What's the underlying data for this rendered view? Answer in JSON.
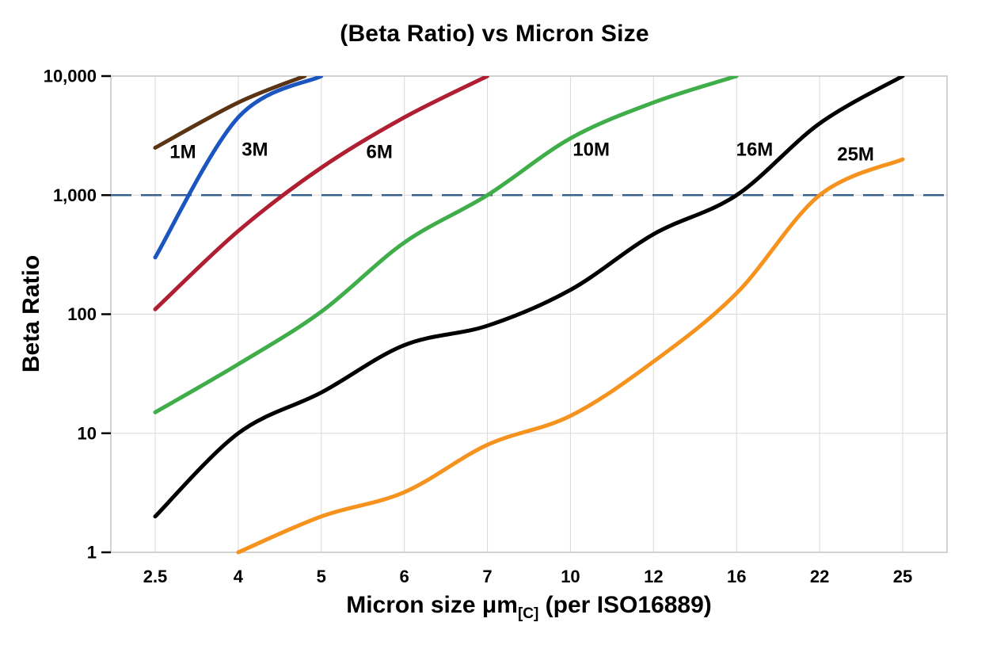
{
  "chart_data": {
    "type": "line",
    "title": "(Beta Ratio) vs Micron Size",
    "ylabel": "Beta Ratio",
    "xlabel": "Micron size μm[C] (per ISO16889)",
    "xlabel_parts": {
      "main": "Micron size μm",
      "subscript": "[C]",
      "suffix": " (per ISO16889)"
    },
    "x_ticks": [
      2.5,
      4,
      5,
      6,
      7,
      10,
      12,
      16,
      22,
      25
    ],
    "x_tick_labels": [
      "2.5",
      "4",
      "5",
      "6",
      "7",
      "10",
      "12",
      "16",
      "22",
      "25"
    ],
    "y_scale": "log",
    "ylim": [
      1,
      10000
    ],
    "y_ticks": [
      1,
      10,
      100,
      1000,
      10000
    ],
    "y_tick_labels": [
      "1",
      "10",
      "100",
      "1,000",
      "10,000"
    ],
    "grid": true,
    "legend": "inline-labels",
    "grid_color": "#d9d9d9",
    "border_color": "#c4c4c4",
    "reference_line": {
      "value": 1000,
      "style": "dashed",
      "color": "#38618c"
    },
    "series": [
      {
        "name": "1M",
        "color": "#5a3413",
        "points": [
          [
            2.5,
            2500
          ],
          [
            4,
            6000
          ],
          [
            4.8,
            10000
          ]
        ],
        "label_pos": [
          3.0,
          2300
        ]
      },
      {
        "name": "3M",
        "color": "#1b55c0",
        "points": [
          [
            2.5,
            300
          ],
          [
            4,
            4500
          ],
          [
            5,
            10000
          ]
        ],
        "label_pos": [
          4.2,
          2400
        ]
      },
      {
        "name": "6M",
        "color": "#b01e32",
        "points": [
          [
            2.5,
            110
          ],
          [
            4,
            500
          ],
          [
            5,
            1700
          ],
          [
            6,
            4500
          ],
          [
            7,
            10000
          ]
        ],
        "label_pos": [
          5.7,
          2300
        ]
      },
      {
        "name": "10M",
        "color": "#3fae4a",
        "points": [
          [
            2.5,
            15
          ],
          [
            4,
            38
          ],
          [
            5,
            105
          ],
          [
            6,
            400
          ],
          [
            7,
            1000
          ],
          [
            10,
            3000
          ],
          [
            12,
            6000
          ],
          [
            16,
            10000
          ]
        ],
        "label_pos": [
          10.5,
          2400
        ]
      },
      {
        "name": "16M",
        "color": "#000000",
        "points": [
          [
            2.5,
            2
          ],
          [
            4,
            10
          ],
          [
            5,
            22
          ],
          [
            6,
            55
          ],
          [
            7,
            80
          ],
          [
            10,
            160
          ],
          [
            12,
            470
          ],
          [
            16,
            1000
          ],
          [
            22,
            4000
          ],
          [
            25,
            10000
          ]
        ],
        "label_pos": [
          17.3,
          2400
        ]
      },
      {
        "name": "25M",
        "color": "#f6921e",
        "points": [
          [
            4,
            1
          ],
          [
            5,
            2
          ],
          [
            6,
            3.2
          ],
          [
            7,
            8
          ],
          [
            10,
            14
          ],
          [
            12,
            40
          ],
          [
            16,
            150
          ],
          [
            22,
            1000
          ],
          [
            25,
            2000
          ]
        ],
        "label_pos": [
          23.3,
          2200
        ]
      }
    ]
  }
}
